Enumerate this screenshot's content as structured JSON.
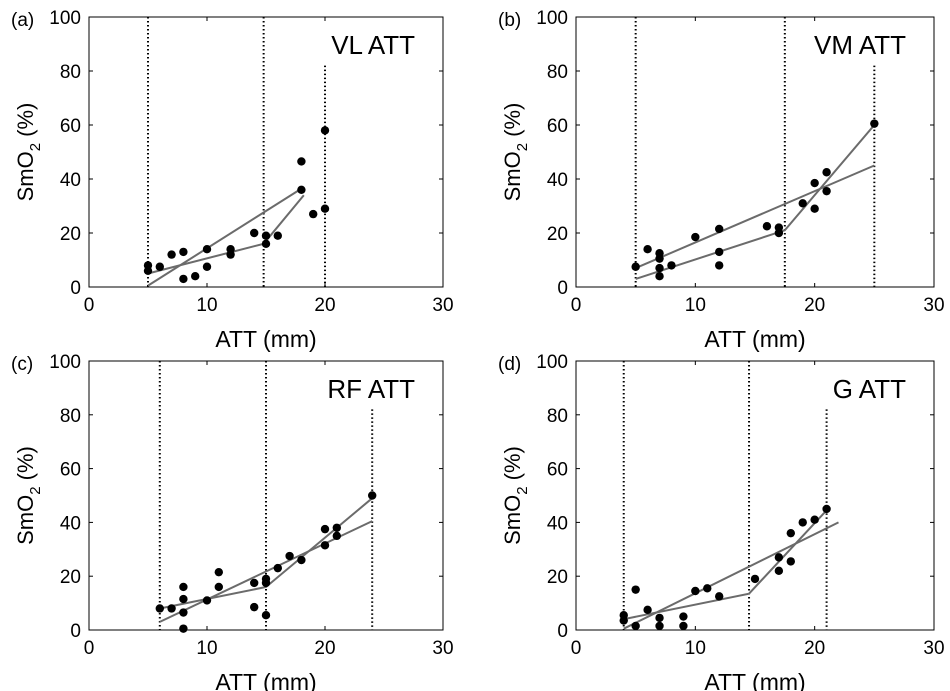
{
  "chart_data": [
    {
      "type": "scatter",
      "panel_label": "(a)",
      "title": "VL ATT",
      "xlabel": "ATT (mm)",
      "ylabel": "SmO",
      "ylabel_sub": "2",
      "ylabel_suffix": " (%)",
      "xlim": [
        0,
        30
      ],
      "ylim": [
        0,
        100
      ],
      "xticks": [
        0,
        10,
        20,
        30
      ],
      "yticks": [
        0,
        20,
        40,
        60,
        80,
        100
      ],
      "grid": false,
      "points": [
        [
          5,
          6
        ],
        [
          5,
          8
        ],
        [
          6,
          7.5
        ],
        [
          7,
          12
        ],
        [
          8,
          13
        ],
        [
          8,
          3
        ],
        [
          9,
          4
        ],
        [
          10,
          7.5
        ],
        [
          10,
          14
        ],
        [
          12,
          12
        ],
        [
          12,
          14
        ],
        [
          14,
          20
        ],
        [
          15,
          16
        ],
        [
          15,
          19
        ],
        [
          16,
          19
        ],
        [
          18,
          36
        ],
        [
          18,
          46.5
        ],
        [
          19,
          27
        ],
        [
          20,
          29
        ],
        [
          20,
          58
        ]
      ],
      "fit_lines": [
        {
          "x": [
            5,
            14.8,
            18.2
          ],
          "y": [
            5,
            16,
            34
          ]
        },
        {
          "x": [
            5,
            18.2
          ],
          "y": [
            0.5,
            37
          ]
        }
      ],
      "vlines": [
        {
          "x": 5,
          "ymax": 100
        },
        {
          "x": 14.8,
          "ymax": 100
        },
        {
          "x": 20,
          "ymax": 82
        }
      ]
    },
    {
      "type": "scatter",
      "panel_label": "(b)",
      "title": "VM ATT",
      "xlabel": "ATT (mm)",
      "ylabel": "SmO",
      "ylabel_sub": "2",
      "ylabel_suffix": " (%)",
      "xlim": [
        0,
        30
      ],
      "ylim": [
        0,
        100
      ],
      "xticks": [
        0,
        10,
        20,
        30
      ],
      "yticks": [
        0,
        20,
        40,
        60,
        80,
        100
      ],
      "grid": false,
      "points": [
        [
          5,
          7.5
        ],
        [
          6,
          14
        ],
        [
          7,
          4
        ],
        [
          7,
          7
        ],
        [
          7,
          10.5
        ],
        [
          7,
          12.5
        ],
        [
          8,
          8
        ],
        [
          10,
          18.5
        ],
        [
          12,
          8
        ],
        [
          12,
          13
        ],
        [
          12,
          21.5
        ],
        [
          16,
          22.5
        ],
        [
          17,
          20
        ],
        [
          17,
          22
        ],
        [
          19,
          31
        ],
        [
          20,
          29
        ],
        [
          20,
          38.5
        ],
        [
          21,
          35.5
        ],
        [
          21,
          42.5
        ],
        [
          25,
          60.5
        ]
      ],
      "fit_lines": [
        {
          "x": [
            5,
            17.5,
            25
          ],
          "y": [
            3,
            21,
            60
          ]
        },
        {
          "x": [
            5,
            25
          ],
          "y": [
            7,
            45
          ]
        }
      ],
      "vlines": [
        {
          "x": 5,
          "ymax": 100
        },
        {
          "x": 17.5,
          "ymax": 100
        },
        {
          "x": 25,
          "ymax": 82
        }
      ]
    },
    {
      "type": "scatter",
      "panel_label": "(c)",
      "title": "RF ATT",
      "xlabel": "ATT (mm)",
      "ylabel": "SmO",
      "ylabel_sub": "2",
      "ylabel_suffix": " (%)",
      "xlim": [
        0,
        30
      ],
      "ylim": [
        0,
        100
      ],
      "xticks": [
        0,
        10,
        20,
        30
      ],
      "yticks": [
        0,
        20,
        40,
        60,
        80,
        100
      ],
      "grid": false,
      "points": [
        [
          6,
          8
        ],
        [
          7,
          8
        ],
        [
          8,
          0.5
        ],
        [
          8,
          6.5
        ],
        [
          8,
          11.5
        ],
        [
          8,
          16
        ],
        [
          10,
          11
        ],
        [
          11,
          16
        ],
        [
          11,
          21.5
        ],
        [
          14,
          8.5
        ],
        [
          14,
          17.5
        ],
        [
          15,
          5.5
        ],
        [
          15,
          17.5
        ],
        [
          15,
          19
        ],
        [
          16,
          23
        ],
        [
          17,
          27.5
        ],
        [
          18,
          26
        ],
        [
          20,
          31.5
        ],
        [
          20,
          37.5
        ],
        [
          21,
          35
        ],
        [
          21,
          38
        ],
        [
          24,
          50
        ]
      ],
      "fit_lines": [
        {
          "x": [
            6,
            15,
            24
          ],
          "y": [
            8,
            16,
            49
          ]
        },
        {
          "x": [
            6,
            24
          ],
          "y": [
            3,
            40.5
          ]
        }
      ],
      "vlines": [
        {
          "x": 6,
          "ymax": 100
        },
        {
          "x": 15,
          "ymax": 100
        },
        {
          "x": 24,
          "ymax": 82
        }
      ]
    },
    {
      "type": "scatter",
      "panel_label": "(d)",
      "title": "G ATT",
      "xlabel": "ATT (mm)",
      "ylabel": "SmO",
      "ylabel_sub": "2",
      "ylabel_suffix": " (%)",
      "xlim": [
        0,
        30
      ],
      "ylim": [
        0,
        100
      ],
      "xticks": [
        0,
        10,
        20,
        30
      ],
      "yticks": [
        0,
        20,
        40,
        60,
        80,
        100
      ],
      "grid": false,
      "points": [
        [
          4,
          3.5
        ],
        [
          4,
          5.5
        ],
        [
          5,
          1.5
        ],
        [
          5,
          15
        ],
        [
          6,
          7.5
        ],
        [
          7,
          1.5
        ],
        [
          7,
          4.5
        ],
        [
          9,
          1.5
        ],
        [
          9,
          5
        ],
        [
          10,
          14.5
        ],
        [
          11,
          15.5
        ],
        [
          12,
          12.5
        ],
        [
          15,
          19
        ],
        [
          17,
          22
        ],
        [
          17,
          27
        ],
        [
          18,
          25.5
        ],
        [
          18,
          36
        ],
        [
          19,
          40
        ],
        [
          20,
          41
        ],
        [
          21,
          45
        ]
      ],
      "fit_lines": [
        {
          "x": [
            4,
            14.5,
            21
          ],
          "y": [
            4,
            13.5,
            44.5
          ]
        },
        {
          "x": [
            4,
            22
          ],
          "y": [
            0.5,
            40
          ]
        }
      ],
      "vlines": [
        {
          "x": 4,
          "ymax": 100
        },
        {
          "x": 14.5,
          "ymax": 100
        },
        {
          "x": 21,
          "ymax": 82
        }
      ]
    }
  ]
}
